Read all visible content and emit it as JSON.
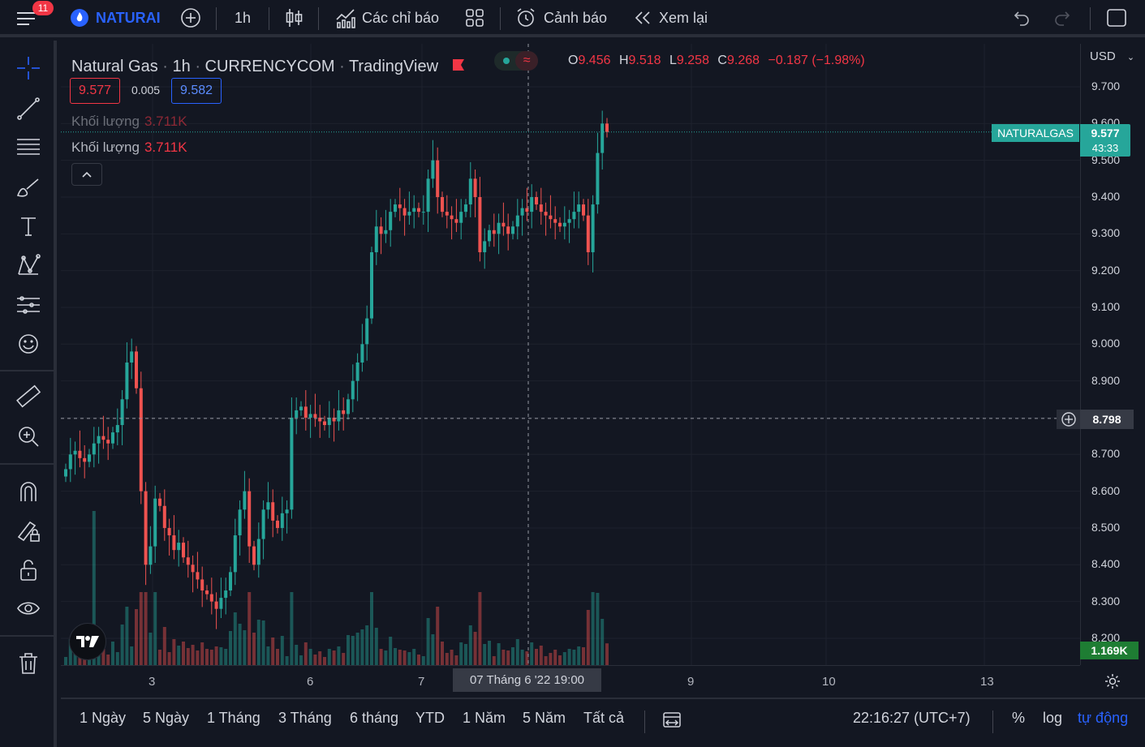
{
  "topbar": {
    "menu_badge": "11",
    "symbol": "NATURAI",
    "interval": "1h",
    "indicators_label": "Các chỉ báo",
    "alerts_label": "Cảnh báo",
    "replay_label": "Xem lại"
  },
  "legend": {
    "name": "Natural Gas",
    "interval": "1h",
    "exchange": "CURRENCYCOM",
    "source": "TradingView",
    "open_label": "O",
    "open": "9.456",
    "high_label": "H",
    "high": "9.518",
    "low_label": "L",
    "low": "9.258",
    "close_label": "C",
    "close": "9.268",
    "change": "−0.187 (−1.98%)",
    "bid": "9.577",
    "spread": "0.005",
    "ask": "9.582",
    "volume_label": "Khối lượng",
    "volume_value": "3.711K"
  },
  "price_scale": {
    "currency": "USD",
    "labels": [
      "9.700",
      "9.600",
      "9.500",
      "9.400",
      "9.300",
      "9.200",
      "9.100",
      "9.000",
      "8.900",
      "8.800",
      "8.700",
      "8.600",
      "8.500",
      "8.400",
      "8.300",
      "8.200"
    ],
    "symbol_tag": "NATURALGAS",
    "last_price": "9.577",
    "countdown": "43:33",
    "crosshair_price": "8.798",
    "volume_tag": "1.169K"
  },
  "time_axis": {
    "labels": [
      "3",
      "6",
      "7",
      "9",
      "10",
      "13"
    ],
    "crosshair_time": "07 Tháng 6 '22   19:00"
  },
  "bottombar": {
    "ranges": [
      "1 Ngày",
      "5 Ngày",
      "1 Tháng",
      "3 Tháng",
      "6 tháng",
      "YTD",
      "1 Năm",
      "5 Năm",
      "Tất cả"
    ],
    "clock": "22:16:27 (UTC+7)",
    "percent": "%",
    "log": "log",
    "auto": "tự động"
  },
  "colors": {
    "up": "#26a69a",
    "down": "#ef5350",
    "accent": "#2962ff",
    "background": "#131722"
  },
  "icons": [
    "menu-icon",
    "flame-icon",
    "add-symbol-icon",
    "candles-icon",
    "indicators-icon",
    "layout-icon",
    "alarm-icon",
    "replay-icon",
    "undo-icon",
    "redo-icon",
    "fullscreen-icon",
    "crosshair-icon",
    "trendline-icon",
    "fib-icon",
    "brush-icon",
    "text-icon",
    "pattern-icon",
    "forecast-icon",
    "emoji-icon",
    "ruler-icon",
    "zoom-icon",
    "magnet-icon",
    "lock-draw-icon",
    "lock-icon",
    "eye-icon",
    "trash-icon",
    "tv-logo-icon",
    "settings-icon",
    "compare-icon"
  ],
  "chart_data": {
    "type": "candlestick",
    "symbol": "NATURALGAS",
    "interval": "1h",
    "ylim": [
      8.15,
      9.75
    ],
    "x_ticks": [
      "3",
      "6",
      "7",
      "9",
      "10",
      "13"
    ],
    "candles_close": [
      8.66,
      8.7,
      8.71,
      8.69,
      8.68,
      8.7,
      8.73,
      8.75,
      8.74,
      8.73,
      8.76,
      8.78,
      8.85,
      8.95,
      8.98,
      8.88,
      8.6,
      8.4,
      8.45,
      8.58,
      8.56,
      8.5,
      8.48,
      8.44,
      8.46,
      8.42,
      8.4,
      8.38,
      8.36,
      8.33,
      8.32,
      8.3,
      8.28,
      8.31,
      8.33,
      8.38,
      8.48,
      8.55,
      8.6,
      8.45,
      8.4,
      8.47,
      8.55,
      8.57,
      8.52,
      8.5,
      8.54,
      8.55,
      8.8,
      8.82,
      8.83,
      8.8,
      8.81,
      8.8,
      8.79,
      8.78,
      8.8,
      8.79,
      8.82,
      8.81,
      8.85,
      8.9,
      8.95,
      9.0,
      9.07,
      9.25,
      9.32,
      9.3,
      9.31,
      9.36,
      9.38,
      9.37,
      9.35,
      9.36,
      9.37,
      9.36,
      9.36,
      9.45,
      9.5,
      9.4,
      9.36,
      9.35,
      9.34,
      9.33,
      9.36,
      9.38,
      9.45,
      9.4,
      9.25,
      9.28,
      9.31,
      9.3,
      9.33,
      9.32,
      9.3,
      9.32,
      9.35,
      9.37,
      9.36,
      9.4,
      9.38,
      9.36,
      9.35,
      9.34,
      9.33,
      9.32,
      9.33,
      9.34,
      9.36,
      9.38,
      9.35,
      9.25,
      9.38,
      9.52,
      9.6,
      9.577
    ]
  }
}
